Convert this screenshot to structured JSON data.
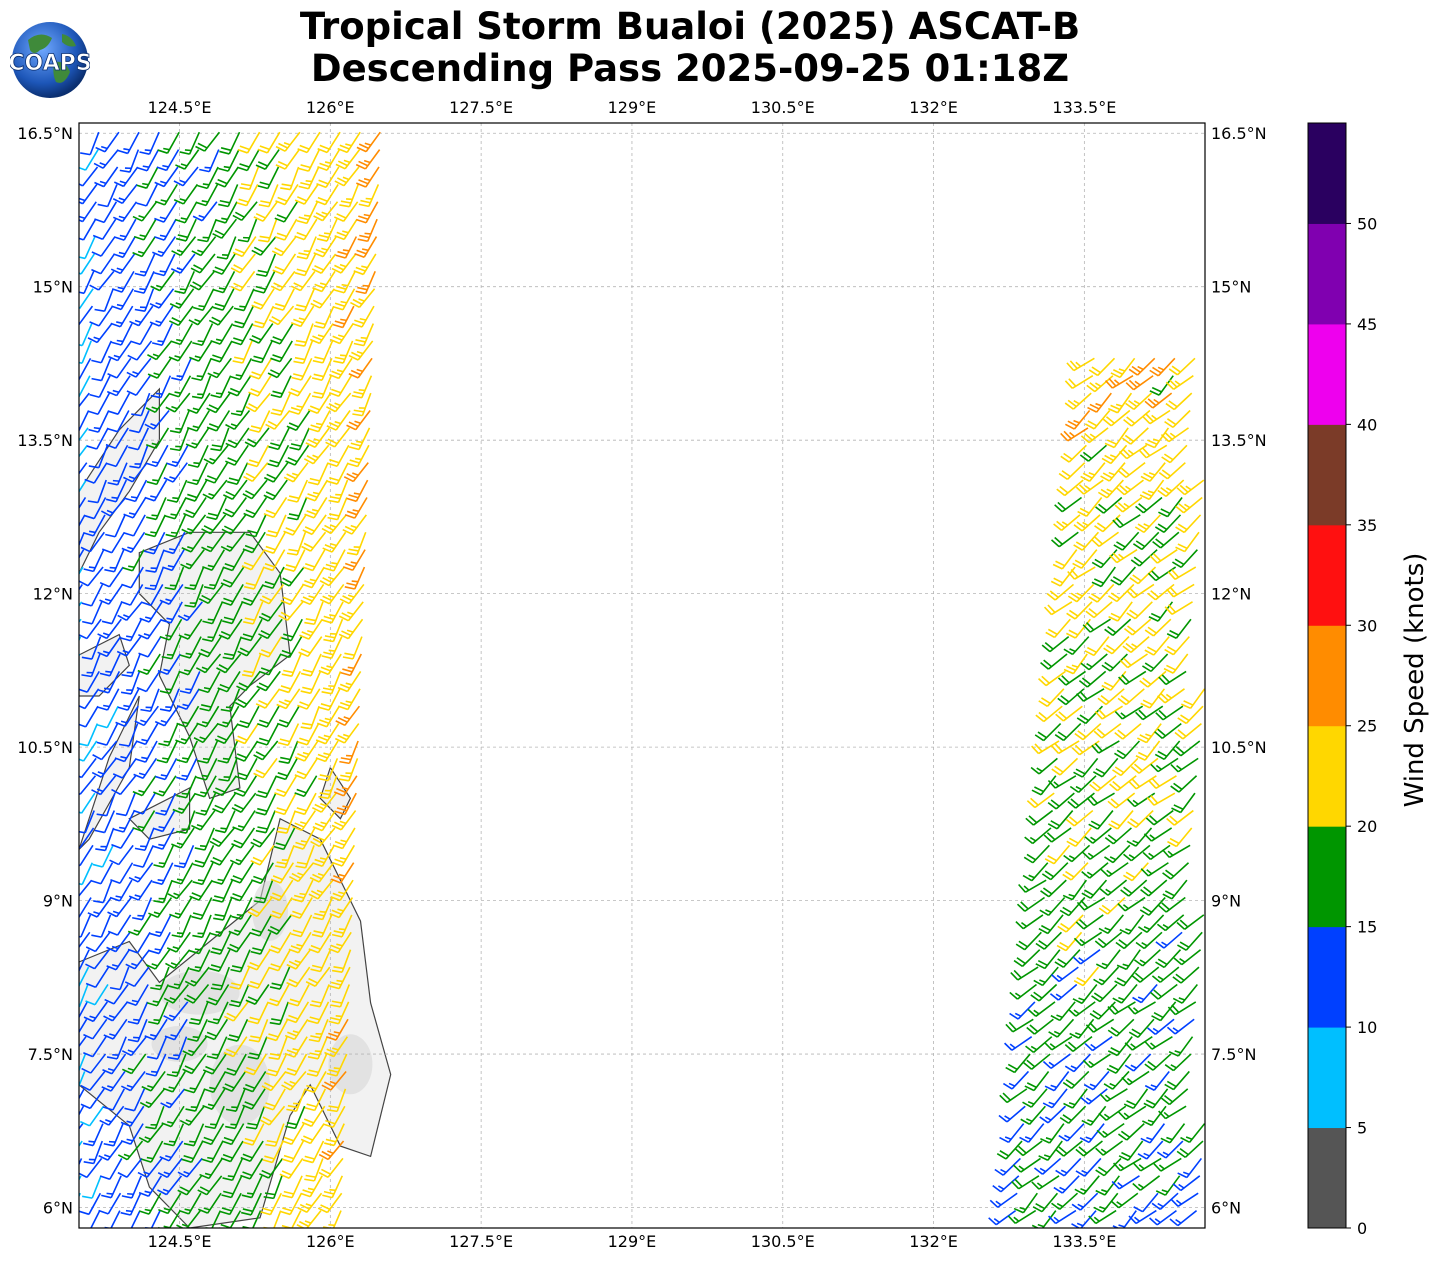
{
  "title": {
    "line1": "Tropical Storm Bualoi (2025) ASCAT-B",
    "line2": "Descending Pass 2025-09-25 01:18Z"
  },
  "logo": {
    "text": "COAPS",
    "icon": "globe-logo-icon"
  },
  "map": {
    "lon_range": [
      123.5,
      134.7
    ],
    "lat_range": [
      5.8,
      16.6
    ],
    "lon_ticks": [
      {
        "value": 124.5,
        "label": "124.5°E"
      },
      {
        "value": 126.0,
        "label": "126°E"
      },
      {
        "value": 127.5,
        "label": "127.5°E"
      },
      {
        "value": 129.0,
        "label": "129°E"
      },
      {
        "value": 130.5,
        "label": "130.5°E"
      },
      {
        "value": 132.0,
        "label": "132°E"
      },
      {
        "value": 133.5,
        "label": "133.5°E"
      }
    ],
    "lat_ticks": [
      {
        "value": 6.0,
        "label": "6°N"
      },
      {
        "value": 7.5,
        "label": "7.5°N"
      },
      {
        "value": 9.0,
        "label": "9°N"
      },
      {
        "value": 10.5,
        "label": "10.5°N"
      },
      {
        "value": 12.0,
        "label": "12°N"
      },
      {
        "value": 13.5,
        "label": "13.5°N"
      },
      {
        "value": 15.0,
        "label": "15°N"
      },
      {
        "value": 16.5,
        "label": "16.5°N"
      }
    ],
    "gridlines": true,
    "land_color": "#f2f2f2",
    "coast_color": "#444444"
  },
  "colorbar": {
    "label": "Wind Speed (knots)",
    "bins": [
      {
        "from": 0,
        "to": 5,
        "color": "#555555"
      },
      {
        "from": 5,
        "to": 10,
        "color": "#00bfff"
      },
      {
        "from": 10,
        "to": 15,
        "color": "#0040ff"
      },
      {
        "from": 15,
        "to": 20,
        "color": "#009600"
      },
      {
        "from": 20,
        "to": 25,
        "color": "#ffd700"
      },
      {
        "from": 25,
        "to": 30,
        "color": "#ff8c00"
      },
      {
        "from": 30,
        "to": 35,
        "color": "#ff1010"
      },
      {
        "from": 35,
        "to": 40,
        "color": "#7b3b28"
      },
      {
        "from": 40,
        "to": 45,
        "color": "#ee00ee"
      },
      {
        "from": 45,
        "to": 50,
        "color": "#8000b0"
      },
      {
        "from": 50,
        "to": 55,
        "color": "#2a0060"
      }
    ],
    "tick_labels": [
      "0",
      "5",
      "10",
      "15",
      "20",
      "25",
      "30",
      "35",
      "40",
      "45",
      "50"
    ]
  },
  "swaths": [
    {
      "name": "west",
      "lon_start": 123.5,
      "lon_end": 126.6,
      "lat_start": 5.8,
      "lat_end": 16.6
    },
    {
      "name": "east",
      "lon_start": 132.8,
      "lon_end": 134.7,
      "lat_start": 5.8,
      "lat_end": 14.3
    }
  ]
}
